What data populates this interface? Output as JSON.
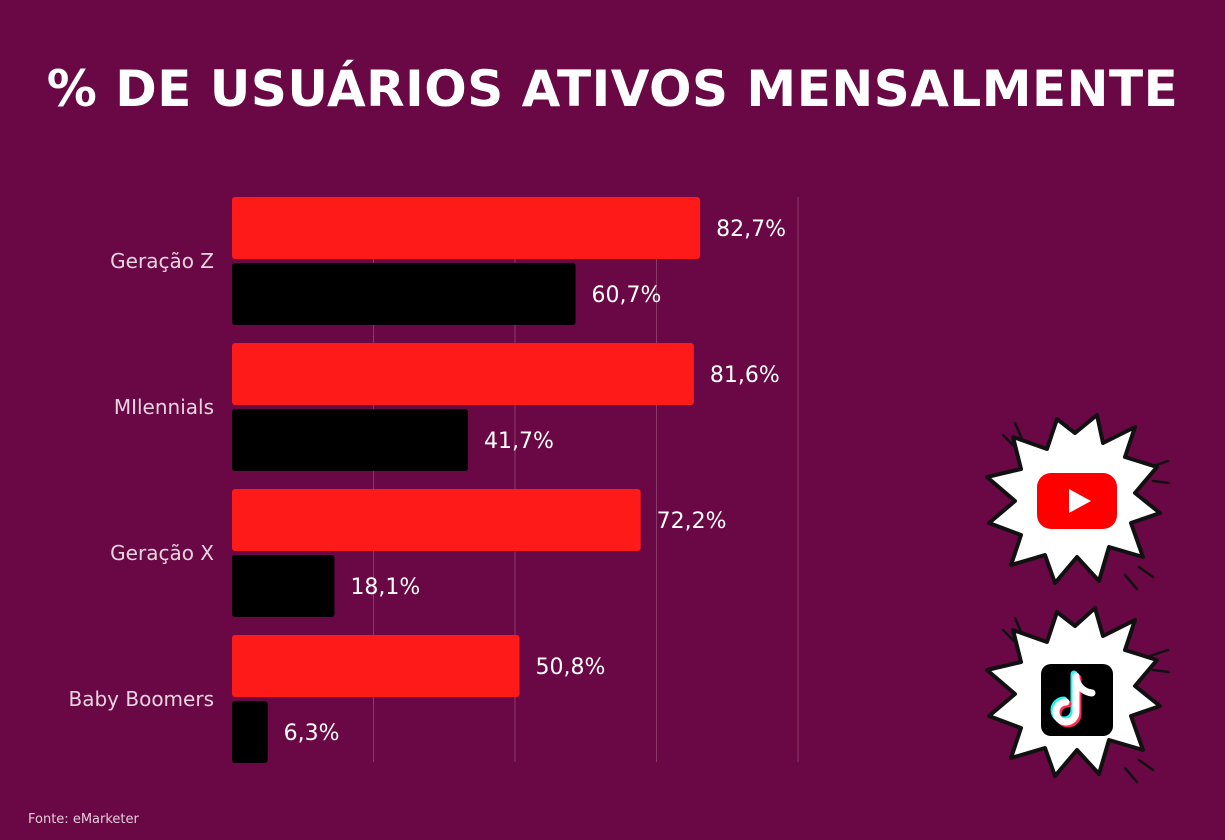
{
  "title": "% DE USUÁRIOS ATIVOS MENSALMENTE",
  "source": "Fonte: eMarketer",
  "colors": {
    "background": "#690844",
    "youtube": "#ff1a1a",
    "tiktok": "#000000",
    "grid": "#8a3a6b"
  },
  "icons": [
    "youtube-logo-icon",
    "tiktok-logo-icon"
  ],
  "chart_data": {
    "type": "bar",
    "orientation": "horizontal",
    "categories": [
      "Geração Z",
      "MIlennials",
      "Geração X",
      "Baby Boomers"
    ],
    "series": [
      {
        "values": [
          82.7,
          81.6,
          72.2,
          50.8
        ],
        "labels": [
          "82,7%",
          "81,6%",
          "72,2%",
          "50,8%"
        ],
        "color": "#ff1a1a"
      },
      {
        "values": [
          60.7,
          41.7,
          18.1,
          6.3
        ],
        "labels": [
          "60,7%",
          "41,7%",
          "18,1%",
          "6,3%"
        ],
        "color": "#000000"
      }
    ],
    "xlim": [
      0,
      100
    ],
    "grid": true,
    "legend": "icons-right"
  }
}
